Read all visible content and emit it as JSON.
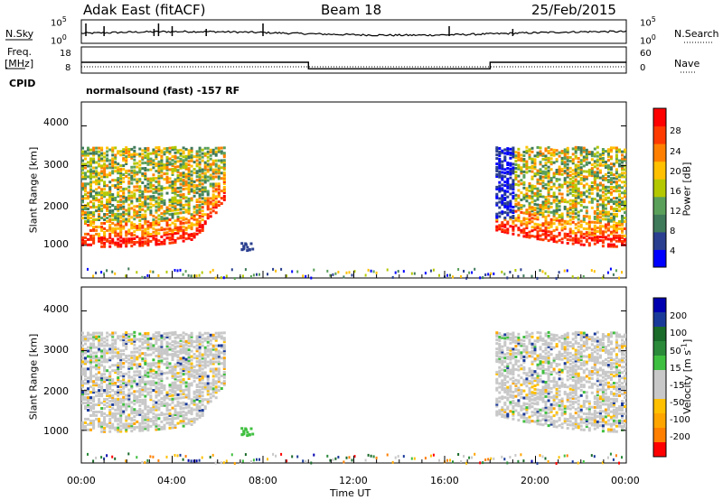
{
  "header": {
    "radar_title": "Adak East (fitACF)",
    "beam": "Beam 18",
    "date": "25/Feb/2015"
  },
  "left_labels": {
    "nsky": "N.Sky",
    "freq_line1": "Freq.",
    "freq_line2": "[MHz]",
    "cpid": "CPID"
  },
  "right_labels": {
    "nsearch": "N.Search",
    "nave": "Nave"
  },
  "cpid_text": "normalsound (fast) -157 RF",
  "colors": {
    "power_scale": [
      "#0000ff",
      "#2a3f8f",
      "#3f7a5a",
      "#5aa05a",
      "#b4c800",
      "#ffc000",
      "#ff8000",
      "#ff3a00",
      "#ff0000"
    ],
    "velocity_scale": [
      "#ff0000",
      "#ff7f00",
      "#ffa500",
      "#ffc000",
      "#c8c8c8",
      "#c8c8c8",
      "#3fbf3f",
      "#2a8a3a",
      "#1a6a2a",
      "#1a3a9a",
      "#0000b0"
    ]
  },
  "chart_data": [
    {
      "type": "line",
      "panel": "noise",
      "ylabel_left": "N.Sky",
      "ylabel_right": "N.Search",
      "yticks_left": [
        "10^5",
        "10^0"
      ],
      "yticks_right": [
        "10^5",
        "10^0"
      ],
      "xlim": [
        "00:00",
        "24:00"
      ]
    },
    {
      "type": "line",
      "panel": "frequency",
      "ylabel_left": "Freq. [MHz]",
      "ylabel_right": "Nave",
      "yticks_left": [
        "18",
        "8"
      ],
      "yticks_right": [
        "60",
        "0"
      ],
      "series": [
        {
          "name": "Freq.",
          "x_hours": [
            0,
            10,
            10,
            18,
            18,
            24
          ],
          "values": [
            13,
            13,
            10,
            10,
            13,
            13
          ]
        },
        {
          "name": "Nave",
          "x_hours": [
            0,
            24
          ],
          "values": [
            9,
            9
          ]
        }
      ]
    },
    {
      "type": "heatmap",
      "panel": "power",
      "ylabel": "Slant Range [km]",
      "yticks": [
        "1000",
        "2000",
        "3000",
        "4000"
      ],
      "ylim": [
        180,
        4600
      ],
      "colorbar_label": "Power [dB]",
      "colorbar_ticks": [
        "4",
        "8",
        "12",
        "16",
        "20",
        "24",
        "28"
      ],
      "colorbar_range": [
        0,
        32
      ],
      "regions": [
        {
          "x0": 0.0,
          "x1": 6.2,
          "ymin": 1000,
          "ymax": 3500,
          "level": "high"
        },
        {
          "x0": 18.0,
          "x1": 24.0,
          "ymin": 1000,
          "ymax": 3500,
          "level": "high"
        },
        {
          "x0": 7.0,
          "x1": 7.5,
          "ymin": 900,
          "ymax": 1100,
          "level": "low"
        }
      ]
    },
    {
      "type": "heatmap",
      "panel": "velocity",
      "ylabel": "Slant Range [km]",
      "yticks": [
        "1000",
        "2000",
        "3000",
        "4000"
      ],
      "ylim": [
        180,
        4600
      ],
      "colorbar_label": "Velocity [m s^-1]",
      "colorbar_ticks": [
        "200",
        "100",
        "50",
        "15",
        "-15",
        "-50",
        "-100",
        "-200"
      ],
      "xlabel": "Time UT",
      "xticks": [
        "00:00",
        "04:00",
        "08:00",
        "12:00",
        "16:00",
        "20:00",
        "00:00"
      ]
    }
  ]
}
